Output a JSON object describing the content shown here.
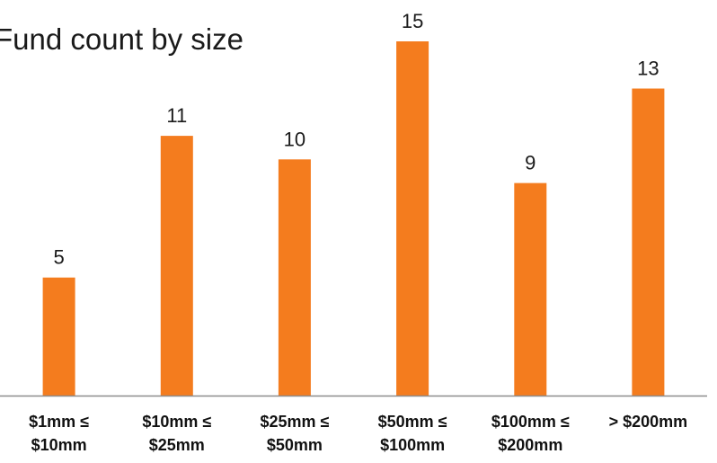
{
  "chart_data": {
    "type": "bar",
    "title": "Fund count by size",
    "xlabel": "",
    "ylabel": "",
    "categories": [
      [
        "$1mm ≤",
        "$10mm"
      ],
      [
        "$10mm ≤",
        "$25mm"
      ],
      [
        "$25mm ≤",
        "$50mm"
      ],
      [
        "$50mm ≤",
        "$100mm"
      ],
      [
        "$100mm ≤",
        "$200mm"
      ],
      [
        "> $200mm"
      ]
    ],
    "values": [
      5,
      11,
      10,
      15,
      9,
      13
    ],
    "data_labels": [
      "5",
      "11",
      "10",
      "15",
      "9",
      "13"
    ],
    "ylim": [
      0,
      15
    ],
    "grid": false,
    "legend": "none",
    "bar_color": "#F47C1E",
    "axis_color": "#8c8c8c"
  }
}
